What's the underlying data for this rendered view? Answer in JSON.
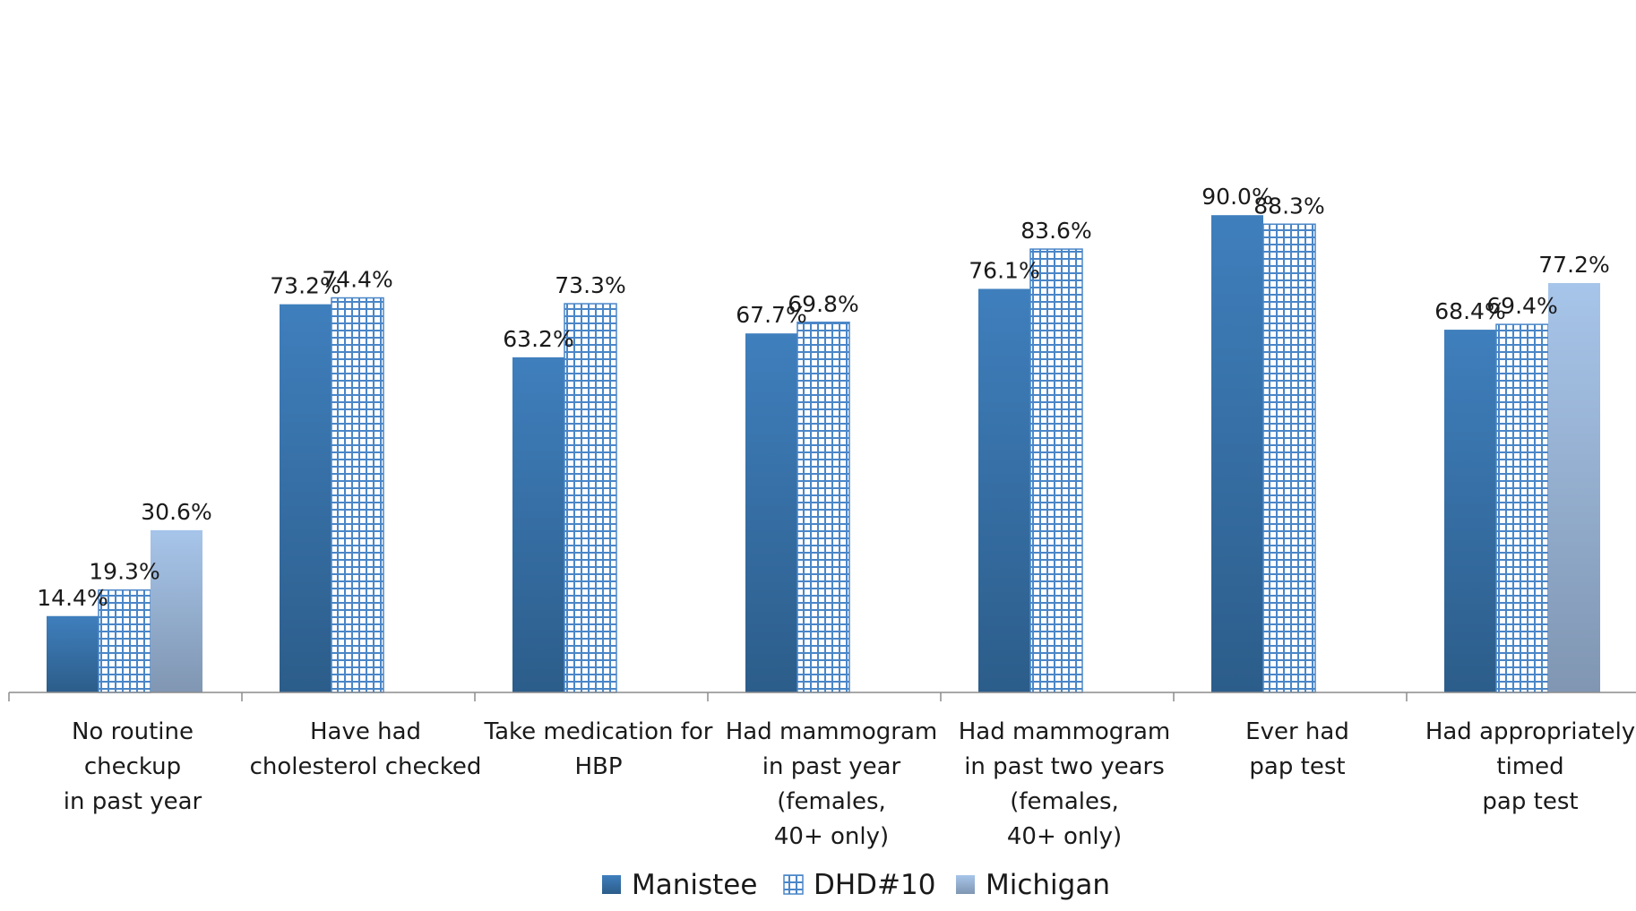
{
  "chart_data": {
    "type": "bar",
    "title": "",
    "xlabel": "",
    "ylabel": "",
    "ylim": [
      0,
      100
    ],
    "grid": false,
    "legend_position": "bottom",
    "categories": [
      [
        "No routine",
        "checkup",
        "in past year"
      ],
      [
        "Have had",
        "cholesterol checked"
      ],
      [
        "Take medication for",
        "HBP"
      ],
      [
        "Had mammogram",
        "in past year",
        "(females,",
        "40+ only)"
      ],
      [
        "Had mammogram",
        "in past two years",
        "(females,",
        "40+ only)"
      ],
      [
        "Ever had",
        "pap test"
      ],
      [
        "Had appropriately",
        "timed",
        "pap test"
      ]
    ],
    "series": [
      {
        "name": "Manistee",
        "style": "solid-dark",
        "color": "#3a73aa",
        "values": [
          14.4,
          73.2,
          63.2,
          67.7,
          76.1,
          90.0,
          68.4
        ],
        "labels": [
          "14.4%",
          "73.2%",
          "63.2%",
          "67.7%",
          "76.1%",
          "90.0%",
          "68.4%"
        ]
      },
      {
        "name": "DHD#10",
        "style": "grid-pattern",
        "color": "#4a86c8",
        "values": [
          19.3,
          74.4,
          73.3,
          69.8,
          83.6,
          88.3,
          69.4
        ],
        "labels": [
          "19.3%",
          "74.4%",
          "73.3%",
          "69.8%",
          "83.6%",
          "88.3%",
          "69.4%"
        ]
      },
      {
        "name": "Michigan",
        "style": "solid-light",
        "color": "#a3c0e4",
        "values": [
          30.6,
          null,
          null,
          null,
          null,
          null,
          77.2
        ],
        "labels": [
          "30.6%",
          null,
          null,
          null,
          null,
          null,
          "77.2%"
        ]
      }
    ]
  }
}
